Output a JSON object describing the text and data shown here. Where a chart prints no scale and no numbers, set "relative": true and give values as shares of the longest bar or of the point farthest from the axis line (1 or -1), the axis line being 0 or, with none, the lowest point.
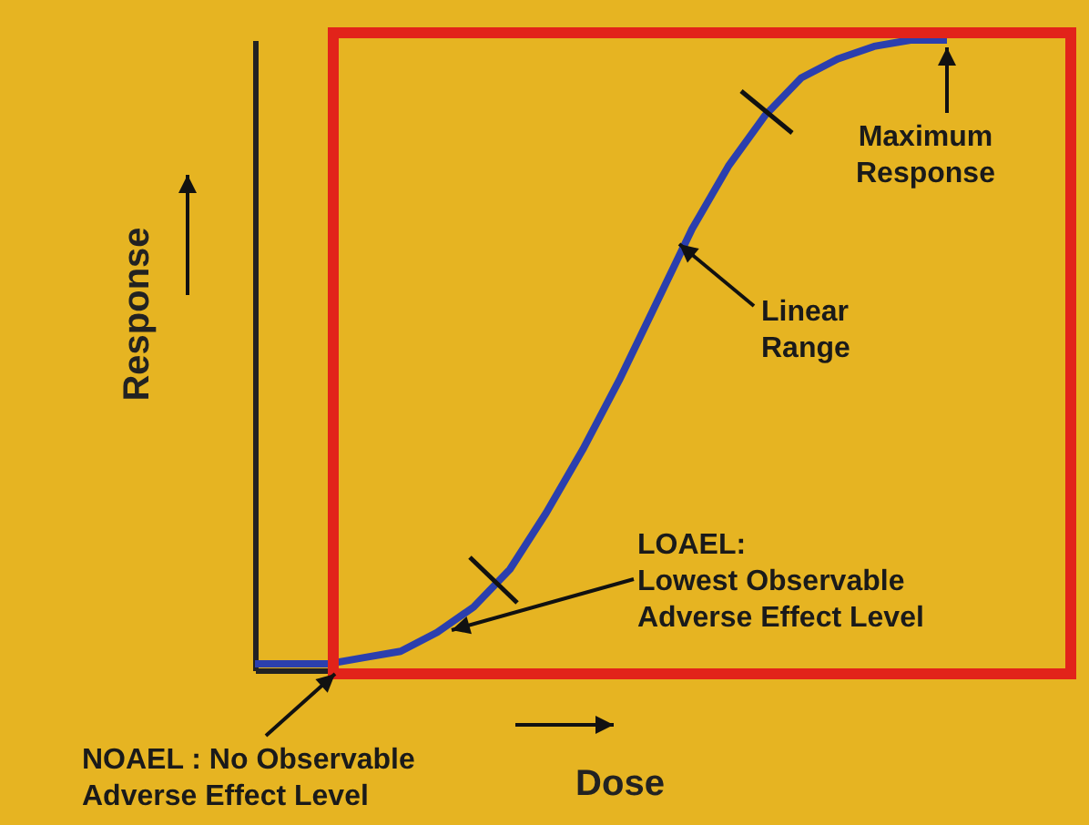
{
  "chart_data": {
    "type": "line",
    "relative": true,
    "xlabel": "Dose",
    "ylabel": "Response",
    "categories": [
      null,
      null,
      null,
      null,
      null,
      null,
      null,
      null,
      null,
      null,
      null,
      null,
      null,
      null,
      null,
      null,
      null,
      null,
      null,
      null
    ],
    "series": [
      {
        "color": "#2b3fae",
        "values": [
          0.01,
          0.01,
          0.01,
          0.02,
          0.03,
          0.06,
          0.1,
          0.16,
          0.25,
          0.35,
          0.46,
          0.58,
          0.7,
          0.8,
          0.88,
          0.94,
          0.97,
          0.99,
          1,
          1
        ]
      }
    ],
    "annotations": [
      "Maximum\nResponse",
      "Linear\nRange",
      "LOAEL:\nLowest Observable\nAdverse Effect Level",
      "NOAEL : No Observable\nAdverse Effect Level"
    ]
  }
}
